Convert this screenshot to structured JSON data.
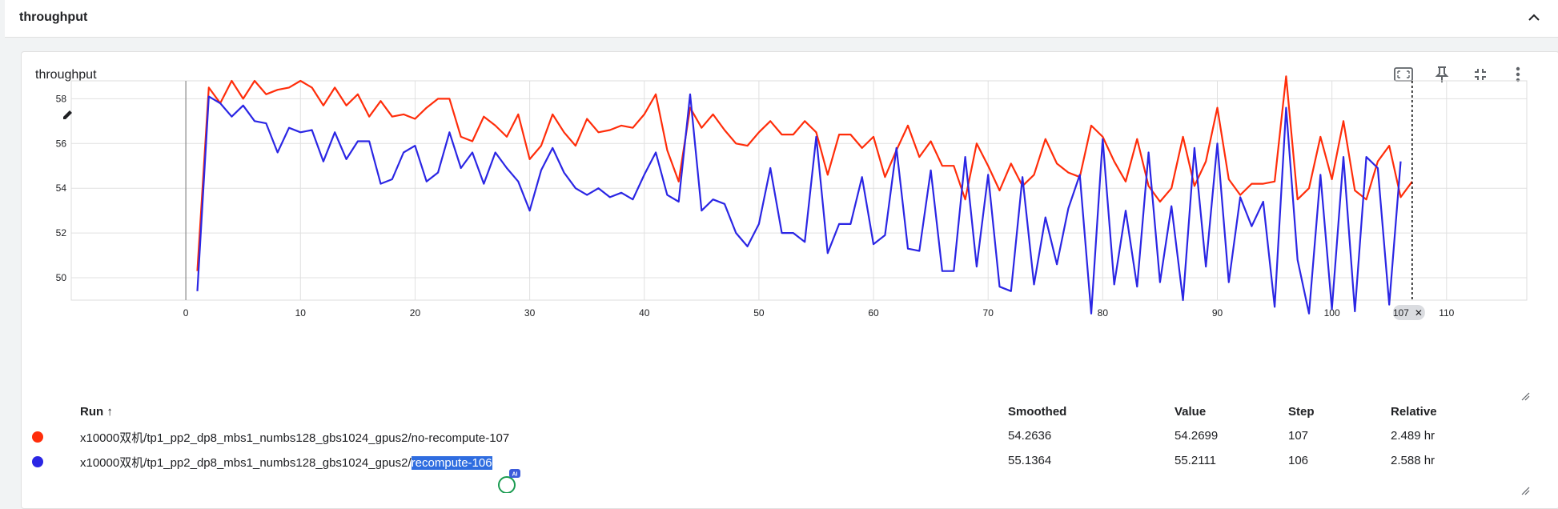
{
  "section": {
    "title": "throughput"
  },
  "card": {
    "title": "throughput",
    "tools": [
      "fit-to-screen-icon",
      "pin-icon",
      "fullscreen-exit-icon",
      "more-vert-icon"
    ]
  },
  "colors": {
    "series_a": "#ff2d0a",
    "series_b": "#2b26e4",
    "grid": "#e0e0e0",
    "selection": "#2f6de0"
  },
  "chart_data": {
    "type": "line",
    "x_ticks": [
      "0",
      "10",
      "20",
      "30",
      "40",
      "50",
      "60",
      "70",
      "80",
      "90",
      "100",
      "110"
    ],
    "y_ticks": [
      "50",
      "52",
      "54",
      "56",
      "58"
    ],
    "xlim": [
      -10,
      117
    ],
    "ylim": [
      49,
      58.8
    ],
    "cursor": {
      "step": 107,
      "label": "107"
    },
    "series": [
      {
        "name": "x10000双机/tp1_pp2_dp8_mbs1_numbs128_gbs1024_gpus2/no-recompute-107",
        "color": "#ff2d0a",
        "x": [
          1,
          2,
          3,
          4,
          5,
          6,
          7,
          8,
          9,
          10,
          11,
          12,
          13,
          14,
          15,
          16,
          17,
          18,
          19,
          20,
          21,
          22,
          23,
          24,
          25,
          26,
          27,
          28,
          29,
          30,
          31,
          32,
          33,
          34,
          35,
          36,
          37,
          38,
          39,
          40,
          41,
          42,
          43,
          44,
          45,
          46,
          47,
          48,
          49,
          50,
          51,
          52,
          53,
          54,
          55,
          56,
          57,
          58,
          59,
          60,
          61,
          62,
          63,
          64,
          65,
          66,
          67,
          68,
          69,
          70,
          71,
          72,
          73,
          74,
          75,
          76,
          77,
          78,
          79,
          80,
          81,
          82,
          83,
          84,
          85,
          86,
          87,
          88,
          89,
          90,
          91,
          92,
          93,
          94,
          95,
          96,
          97,
          98,
          99,
          100,
          101,
          102,
          103,
          104,
          105,
          106,
          107
        ],
        "y": [
          50.3,
          58.5,
          57.8,
          58.8,
          58,
          58.8,
          58.2,
          58.4,
          58.5,
          58.8,
          58.5,
          57.7,
          58.5,
          57.7,
          58.2,
          57.2,
          57.9,
          57.2,
          57.3,
          57.1,
          57.6,
          58,
          58,
          56.3,
          56.1,
          57.2,
          56.8,
          56.3,
          57.3,
          55.3,
          55.9,
          57.3,
          56.5,
          55.9,
          57.1,
          56.5,
          56.6,
          56.8,
          56.7,
          57.3,
          58.2,
          55.7,
          54.3,
          57.6,
          56.7,
          57.3,
          56.6,
          56,
          55.9,
          56.5,
          57,
          56.4,
          56.4,
          57,
          56.5,
          54.6,
          56.4,
          56.4,
          55.8,
          56.3,
          54.5,
          55.7,
          56.8,
          55.4,
          56.1,
          55,
          55,
          53.5,
          56,
          55,
          53.9,
          55.1,
          54.1,
          54.6,
          56.2,
          55.1,
          54.7,
          54.5,
          56.8,
          56.3,
          55.2,
          54.3,
          56.2,
          54.1,
          53.4,
          54,
          56.3,
          54.1,
          55.2,
          57.6,
          54.4,
          53.7,
          54.2,
          54.2,
          54.3,
          59,
          53.5,
          54,
          56.3,
          54.4,
          57,
          53.9,
          53.5,
          55.2,
          55.9,
          53.6,
          54.3
        ]
      },
      {
        "name": "x10000双机/tp1_pp2_dp8_mbs1_numbs128_gbs1024_gpus2/recompute-106",
        "color": "#2b26e4",
        "x": [
          1,
          2,
          3,
          4,
          5,
          6,
          7,
          8,
          9,
          10,
          11,
          12,
          13,
          14,
          15,
          16,
          17,
          18,
          19,
          20,
          21,
          22,
          23,
          24,
          25,
          26,
          27,
          28,
          29,
          30,
          31,
          32,
          33,
          34,
          35,
          36,
          37,
          38,
          39,
          40,
          41,
          42,
          43,
          44,
          45,
          46,
          47,
          48,
          49,
          50,
          51,
          52,
          53,
          54,
          55,
          56,
          57,
          58,
          59,
          60,
          61,
          62,
          63,
          64,
          65,
          66,
          67,
          68,
          69,
          70,
          71,
          72,
          73,
          74,
          75,
          76,
          77,
          78,
          79,
          80,
          81,
          82,
          83,
          84,
          85,
          86,
          87,
          88,
          89,
          90,
          91,
          92,
          93,
          94,
          95,
          96,
          97,
          98,
          99,
          100,
          101,
          102,
          103,
          104,
          105,
          106
        ],
        "y": [
          49.4,
          58.1,
          57.8,
          57.2,
          57.7,
          57,
          56.9,
          55.6,
          56.7,
          56.5,
          56.6,
          55.2,
          56.5,
          55.3,
          56.1,
          56.1,
          54.2,
          54.4,
          55.6,
          55.9,
          54.3,
          54.7,
          56.5,
          54.9,
          55.6,
          54.2,
          55.6,
          54.9,
          54.3,
          53,
          54.8,
          55.8,
          54.7,
          54,
          53.7,
          54,
          53.6,
          53.8,
          53.5,
          54.6,
          55.6,
          53.7,
          53.4,
          58.2,
          53,
          53.5,
          53.3,
          52,
          51.4,
          52.4,
          54.9,
          52,
          52,
          51.6,
          56.3,
          51.1,
          52.4,
          52.4,
          54.5,
          51.5,
          51.9,
          55.8,
          51.3,
          51.2,
          54.8,
          50.3,
          50.3,
          55.4,
          50.5,
          54.6,
          49.6,
          49.4,
          54.5,
          49.7,
          52.7,
          50.6,
          53.1,
          54.6,
          48.4,
          56.2,
          49.7,
          53,
          49.6,
          55.6,
          49.8,
          53.2,
          49,
          55.8,
          50.5,
          56,
          49.8,
          53.6,
          52.3,
          53.4,
          48.7,
          57.6,
          50.8,
          48.4,
          54.6,
          48.6,
          55.4,
          48.5,
          55.4,
          54.9,
          48.8,
          55.2
        ]
      }
    ]
  },
  "table": {
    "headers": {
      "run": "Run ↑",
      "smoothed": "Smoothed",
      "value": "Value",
      "step": "Step",
      "relative": "Relative"
    },
    "rows": [
      {
        "run_prefix": "x10000双机/tp1_pp2_dp8_mbs1_numbs128_gbs1024_gpus2/no-recompute-107",
        "run_selected": "",
        "smoothed": "54.2636",
        "value": "54.2699",
        "step": "107",
        "relative": "2.489 hr",
        "color": "#ff2d0a"
      },
      {
        "run_prefix": "x10000双机/tp1_pp2_dp8_mbs1_numbs128_gbs1024_gpus2/",
        "run_selected": "recompute-106",
        "smoothed": "55.1364",
        "value": "55.2111",
        "step": "106",
        "relative": "2.588 hr",
        "color": "#2b26e4"
      }
    ]
  },
  "fab": {
    "badge": "AI"
  }
}
